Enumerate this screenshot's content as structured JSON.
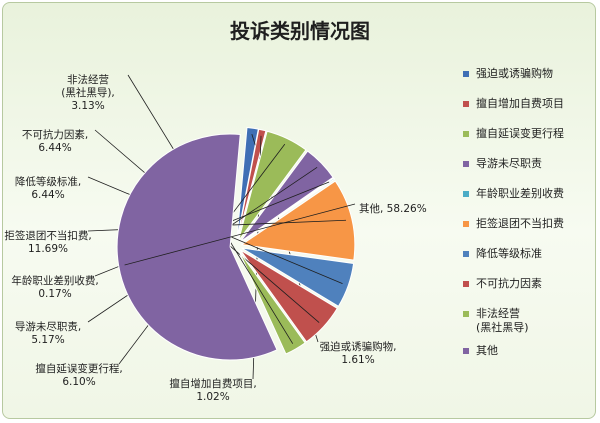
{
  "chart_data": {
    "type": "pie",
    "title": "投诉类别情况图",
    "slices": [
      {
        "name": "强迫或诱骗购物",
        "label": "强迫或诱骗购物,\n1.61%",
        "value": 1.61,
        "color": "#3f6fb5"
      },
      {
        "name": "擅自增加自费项目",
        "label": "擅自增加自费项目,\n1.02%",
        "value": 1.02,
        "color": "#c0504d"
      },
      {
        "name": "擅自延误变更行程",
        "label": "擅自延误变更行程,\n6.10%",
        "value": 6.1,
        "color": "#9bbb59"
      },
      {
        "name": "导游未尽职责",
        "label": "导游未尽职责,\n5.17%",
        "value": 5.17,
        "color": "#8064a2"
      },
      {
        "name": "年龄职业差别收费",
        "label": "年龄职业差别收费,\n0.17%",
        "value": 0.17,
        "color": "#4bacc6"
      },
      {
        "name": "拒签退团不当扣费",
        "label": "拒签退团不当扣费,\n11.69%",
        "value": 11.69,
        "color": "#f79646"
      },
      {
        "name": "降低等级标准",
        "label": "降低等级标准,\n6.44%",
        "value": 6.44,
        "color": "#4f81bd"
      },
      {
        "name": "不可抗力因素",
        "label": "不可抗力因素,\n6.44%",
        "value": 6.44,
        "color": "#c0504d"
      },
      {
        "name": "非法经营\n(黑社黑导)",
        "label": "非法经营\n(黑社黑导),\n3.13%",
        "value": 3.13,
        "color": "#9bbb59"
      },
      {
        "name": "其他",
        "label": "其他, 58.26%",
        "value": 58.26,
        "color": "#8064a2"
      }
    ]
  }
}
